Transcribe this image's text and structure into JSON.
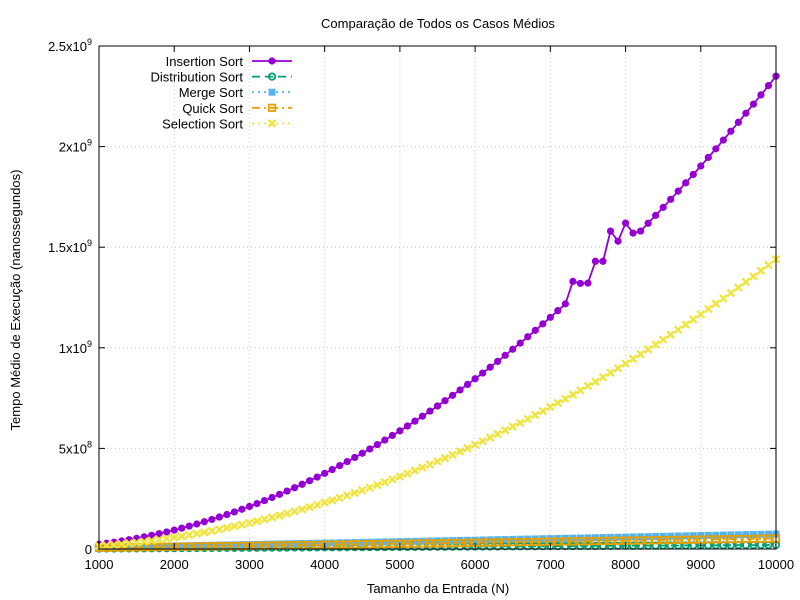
{
  "chart_data": {
    "type": "line",
    "title": "Comparação de Todos os Casos Médios",
    "xlabel": "Tamanho da Entrada (N)",
    "ylabel": "Tempo Médio de Execução (nanossegundos)",
    "xlim": [
      1000,
      10000
    ],
    "ylim": [
      0,
      2500000000
    ],
    "x_ticks": [
      1000,
      2000,
      3000,
      4000,
      5000,
      6000,
      7000,
      8000,
      9000,
      10000
    ],
    "x_tick_labels": [
      "1000",
      "2000",
      "3000",
      "4000",
      "5000",
      "6000",
      "7000",
      "8000",
      "9000",
      "10000"
    ],
    "y_ticks": [
      {
        "value": 0,
        "base": "0",
        "exp": ""
      },
      {
        "value": 500000000,
        "base": "5x10",
        "exp": "8"
      },
      {
        "value": 1000000000,
        "base": "1x10",
        "exp": "9"
      },
      {
        "value": 1500000000,
        "base": "1.5x10",
        "exp": "9"
      },
      {
        "value": 2000000000,
        "base": "2x10",
        "exp": "9"
      },
      {
        "value": 2500000000,
        "base": "2.5x10",
        "exp": "9"
      }
    ],
    "grid": true,
    "legend_position": "top-left",
    "x_range": {
      "start": 1000,
      "end": 10000,
      "step": 100
    },
    "series": [
      {
        "name": "Insertion Sort",
        "color": "#9400d3",
        "marker": "filled-circle",
        "dash": "solid",
        "model": {
          "a": 23500000,
          "b": 0,
          "c": 0,
          "exp": 2
        },
        "overrides": {
          "7300": 1330000000,
          "7400": 1320000000,
          "7600": 1430000000,
          "7700": 1430000000,
          "7800": 1580000000,
          "7900": 1530000000,
          "8000": 1620000000,
          "8100": 1570000000
        }
      },
      {
        "name": "Distribution Sort",
        "color": "#009e73",
        "marker": "open-circle",
        "dash": "dashed",
        "model": {
          "a": 0,
          "b": 2000000,
          "c": 100000,
          "exp": 1
        },
        "overrides": {}
      },
      {
        "name": "Merge Sort",
        "color": "#56b4e9",
        "marker": "filled-square",
        "dash": "dotted",
        "model": {
          "a": 0,
          "b": 6000000,
          "c": 2500000,
          "exp": 1.08
        },
        "overrides": {}
      },
      {
        "name": "Quick Sort",
        "color": "#e69f00",
        "marker": "open-square",
        "dash": "dash-dot",
        "model": {
          "a": 0,
          "b": 4500000,
          "c": 1500000,
          "exp": 1.05
        },
        "overrides": {}
      },
      {
        "name": "Selection Sort",
        "color": "#f0e442",
        "marker": "x",
        "dash": "dotted",
        "model": {
          "a": 14400000,
          "b": 0,
          "c": 0,
          "exp": 2
        },
        "overrides": {}
      }
    ]
  }
}
